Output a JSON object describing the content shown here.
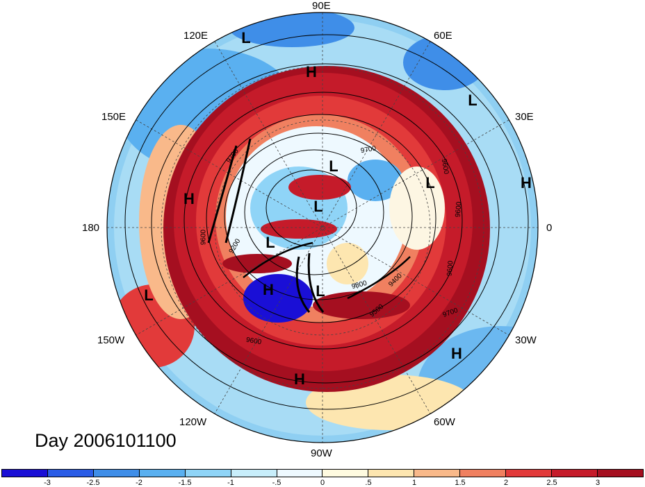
{
  "map": {
    "projection": "north polar stereographic",
    "field": "anomaly shading with geopotential height contours",
    "longitude_labels": [
      {
        "text": "90E"
      },
      {
        "text": "120E"
      },
      {
        "text": "60E"
      },
      {
        "text": "150E"
      },
      {
        "text": "30E"
      },
      {
        "text": "180"
      },
      {
        "text": "0"
      },
      {
        "text": "150W"
      },
      {
        "text": "30W"
      },
      {
        "text": "120W"
      },
      {
        "text": "60W"
      },
      {
        "text": "90W"
      }
    ],
    "pressure_centers": [
      "L",
      "H",
      "L",
      "L",
      "H",
      "H",
      "L",
      "L",
      "L",
      "H",
      "L",
      "L",
      "H",
      "H"
    ],
    "contour_labels": [
      "9700",
      "9700",
      "9600",
      "9600",
      "9200",
      "9600",
      "9800",
      "9400",
      "9500",
      "9700",
      "9600",
      "9600"
    ]
  },
  "day_label": "Day 2006101100",
  "colorbar": {
    "colors": [
      "#1a0fd6",
      "#2a5ce6",
      "#3f8ee8",
      "#5ab0f0",
      "#8fd4f7",
      "#c8eefb",
      "#eef9ff",
      "#fffbe0",
      "#fde6b0",
      "#f9b98a",
      "#f08060",
      "#e23a3a",
      "#c51b2a",
      "#a50f20"
    ],
    "tick_labels": [
      "-3",
      "-2.5",
      "-2",
      "-1.5",
      "-1",
      "-.5",
      "0",
      ".5",
      "1",
      "1.5",
      "2",
      "2.5",
      "3"
    ]
  },
  "colors": {
    "cold": "#2a5ce6",
    "warm": "#b5121b",
    "neutral": "#fdf6e3"
  }
}
